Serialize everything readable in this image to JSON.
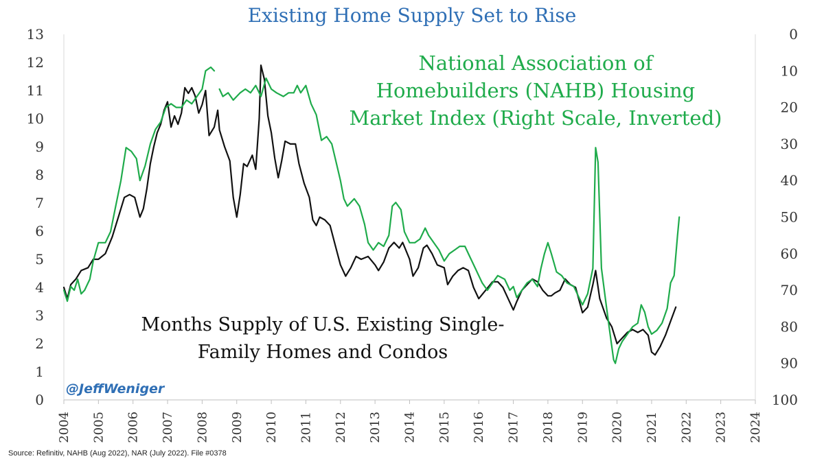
{
  "chart_data": {
    "type": "line",
    "title": "Existing Home Supply Set to Rise",
    "x_range": [
      2004,
      2024
    ],
    "x_ticks": [
      "2004",
      "2005",
      "2006",
      "2007",
      "2008",
      "2009",
      "2010",
      "2011",
      "2012",
      "2013",
      "2014",
      "2015",
      "2016",
      "2017",
      "2018",
      "2019",
      "2020",
      "2021",
      "2022",
      "2023",
      "2024"
    ],
    "left_axis": {
      "range": [
        0,
        13
      ],
      "ticks": [
        "0",
        "1",
        "2",
        "3",
        "4",
        "5",
        "6",
        "7",
        "8",
        "9",
        "10",
        "11",
        "12",
        "13"
      ]
    },
    "right_axis": {
      "range": [
        100,
        0
      ],
      "inverted": true,
      "ticks": [
        "0",
        "10",
        "20",
        "30",
        "40",
        "50",
        "60",
        "70",
        "80",
        "90",
        "100"
      ]
    },
    "grid": false,
    "annotations": {
      "nahb": [
        "National Association of",
        "Homebuilders (NAHB) Housing",
        "Market Index (Right Scale, Inverted)"
      ],
      "supply": [
        "Months Supply of U.S. Existing Single-",
        "Family Homes and Condos"
      ],
      "handle": "@JeffWeniger"
    },
    "source": "Source: Refinitiv, NAHB (Aug 2022), NAR (July 2022). File #0378",
    "series": [
      {
        "color": "#111111",
        "axis": "left",
        "points": [
          [
            2004.0,
            4.0
          ],
          [
            2004.1,
            3.6
          ],
          [
            2004.2,
            4.1
          ],
          [
            2004.35,
            4.3
          ],
          [
            2004.5,
            4.6
          ],
          [
            2004.7,
            4.7
          ],
          [
            2004.85,
            5.0
          ],
          [
            2005.0,
            5.0
          ],
          [
            2005.2,
            5.2
          ],
          [
            2005.4,
            5.8
          ],
          [
            2005.6,
            6.6
          ],
          [
            2005.75,
            7.2
          ],
          [
            2005.9,
            7.3
          ],
          [
            2006.05,
            7.2
          ],
          [
            2006.2,
            6.5
          ],
          [
            2006.3,
            6.8
          ],
          [
            2006.4,
            7.5
          ],
          [
            2006.5,
            8.4
          ],
          [
            2006.6,
            9.0
          ],
          [
            2006.7,
            9.5
          ],
          [
            2006.8,
            9.8
          ],
          [
            2006.9,
            10.3
          ],
          [
            2007.0,
            10.6
          ],
          [
            2007.1,
            9.7
          ],
          [
            2007.2,
            10.1
          ],
          [
            2007.3,
            9.8
          ],
          [
            2007.4,
            10.2
          ],
          [
            2007.5,
            11.1
          ],
          [
            2007.6,
            10.9
          ],
          [
            2007.7,
            11.1
          ],
          [
            2007.8,
            10.8
          ],
          [
            2007.9,
            10.2
          ],
          [
            2008.0,
            10.5
          ],
          [
            2008.1,
            11.0
          ],
          [
            2008.2,
            9.4
          ],
          [
            2008.35,
            9.7
          ],
          [
            2008.45,
            10.3
          ],
          [
            2008.5,
            9.6
          ],
          [
            2008.65,
            9.0
          ],
          [
            2008.8,
            8.5
          ],
          [
            2008.9,
            7.2
          ],
          [
            2009.0,
            6.5
          ],
          [
            2009.1,
            7.3
          ],
          [
            2009.2,
            8.4
          ],
          [
            2009.3,
            8.3
          ],
          [
            2009.45,
            8.7
          ],
          [
            2009.55,
            8.2
          ],
          [
            2009.65,
            10.0
          ],
          [
            2009.7,
            11.9
          ],
          [
            2009.8,
            11.4
          ],
          [
            2009.9,
            10.1
          ],
          [
            2010.0,
            9.5
          ],
          [
            2010.1,
            8.6
          ],
          [
            2010.2,
            7.9
          ],
          [
            2010.3,
            8.5
          ],
          [
            2010.4,
            9.2
          ],
          [
            2010.55,
            9.1
          ],
          [
            2010.7,
            9.1
          ],
          [
            2010.8,
            8.4
          ],
          [
            2010.95,
            7.7
          ],
          [
            2011.1,
            7.2
          ],
          [
            2011.2,
            6.4
          ],
          [
            2011.3,
            6.2
          ],
          [
            2011.4,
            6.5
          ],
          [
            2011.55,
            6.4
          ],
          [
            2011.7,
            6.2
          ],
          [
            2011.85,
            5.5
          ],
          [
            2012.0,
            4.8
          ],
          [
            2012.15,
            4.4
          ],
          [
            2012.3,
            4.7
          ],
          [
            2012.45,
            5.1
          ],
          [
            2012.6,
            5.0
          ],
          [
            2012.8,
            5.1
          ],
          [
            2013.0,
            4.8
          ],
          [
            2013.1,
            4.6
          ],
          [
            2013.25,
            4.9
          ],
          [
            2013.4,
            5.4
          ],
          [
            2013.55,
            5.6
          ],
          [
            2013.7,
            5.4
          ],
          [
            2013.8,
            5.6
          ],
          [
            2014.0,
            5.0
          ],
          [
            2014.1,
            4.4
          ],
          [
            2014.25,
            4.7
          ],
          [
            2014.4,
            5.4
          ],
          [
            2014.5,
            5.5
          ],
          [
            2014.65,
            5.2
          ],
          [
            2014.8,
            4.8
          ],
          [
            2015.0,
            4.7
          ],
          [
            2015.1,
            4.1
          ],
          [
            2015.25,
            4.4
          ],
          [
            2015.4,
            4.6
          ],
          [
            2015.55,
            4.7
          ],
          [
            2015.7,
            4.6
          ],
          [
            2015.85,
            4.0
          ],
          [
            2016.0,
            3.6
          ],
          [
            2016.2,
            3.9
          ],
          [
            2016.4,
            4.2
          ],
          [
            2016.55,
            4.2
          ],
          [
            2016.7,
            4.0
          ],
          [
            2016.85,
            3.6
          ],
          [
            2017.0,
            3.2
          ],
          [
            2017.1,
            3.5
          ],
          [
            2017.25,
            3.9
          ],
          [
            2017.4,
            4.1
          ],
          [
            2017.55,
            4.3
          ],
          [
            2017.7,
            4.2
          ],
          [
            2017.85,
            3.9
          ],
          [
            2018.0,
            3.7
          ],
          [
            2018.1,
            3.7
          ],
          [
            2018.2,
            3.8
          ],
          [
            2018.35,
            3.9
          ],
          [
            2018.5,
            4.3
          ],
          [
            2018.65,
            4.1
          ],
          [
            2018.8,
            4.0
          ],
          [
            2019.0,
            3.1
          ],
          [
            2019.15,
            3.3
          ],
          [
            2019.3,
            4.1
          ],
          [
            2019.38,
            4.6
          ],
          [
            2019.5,
            3.6
          ],
          [
            2019.7,
            2.9
          ],
          [
            2019.85,
            2.6
          ],
          [
            2020.0,
            2.0
          ],
          [
            2020.15,
            2.2
          ],
          [
            2020.3,
            2.4
          ],
          [
            2020.45,
            2.5
          ],
          [
            2020.6,
            2.4
          ],
          [
            2020.75,
            2.5
          ],
          [
            2020.9,
            2.3
          ],
          [
            2021.0,
            1.7
          ],
          [
            2021.1,
            1.6
          ],
          [
            2021.25,
            1.9
          ],
          [
            2021.4,
            2.3
          ],
          [
            2021.55,
            2.8
          ],
          [
            2021.7,
            3.3
          ]
        ]
      },
      {
        "color": "#1fab4b",
        "axis": "right",
        "segments": [
          [
            [
              2004.0,
              70.0
            ],
            [
              2004.1,
              73.0
            ],
            [
              2004.2,
              69.0
            ],
            [
              2004.3,
              70.0
            ],
            [
              2004.4,
              67.0
            ],
            [
              2004.5,
              71.0
            ],
            [
              2004.6,
              70.0
            ],
            [
              2004.75,
              67.0
            ],
            [
              2004.85,
              62.0
            ],
            [
              2005.0,
              57.0
            ],
            [
              2005.2,
              57.0
            ],
            [
              2005.35,
              54.0
            ],
            [
              2005.5,
              47.0
            ],
            [
              2005.65,
              40.0
            ],
            [
              2005.8,
              31.0
            ],
            [
              2005.95,
              32.0
            ],
            [
              2006.1,
              34.0
            ],
            [
              2006.2,
              40.0
            ],
            [
              2006.35,
              36.0
            ],
            [
              2006.5,
              30.0
            ],
            [
              2006.65,
              26.0
            ],
            [
              2006.8,
              24.0
            ],
            [
              2006.95,
              20.0
            ],
            [
              2007.1,
              19.0
            ],
            [
              2007.25,
              20.0
            ],
            [
              2007.4,
              20.0
            ],
            [
              2007.55,
              18.0
            ],
            [
              2007.7,
              19.0
            ],
            [
              2007.85,
              17.0
            ],
            [
              2008.0,
              15.0
            ],
            [
              2008.1,
              10.0
            ],
            [
              2008.25,
              9.0
            ],
            [
              2008.35,
              10.0
            ]
          ],
          [
            [
              2008.5,
              15.0
            ],
            [
              2008.6,
              17.0
            ],
            [
              2008.75,
              16.0
            ],
            [
              2008.9,
              18.0
            ],
            [
              2009.1,
              16.0
            ],
            [
              2009.25,
              15.0
            ],
            [
              2009.4,
              16.0
            ],
            [
              2009.55,
              14.0
            ],
            [
              2009.7,
              17.0
            ],
            [
              2009.85,
              12.0
            ],
            [
              2010.0,
              15.0
            ],
            [
              2010.15,
              16.0
            ],
            [
              2010.35,
              17.0
            ],
            [
              2010.5,
              16.0
            ],
            [
              2010.65,
              16.0
            ],
            [
              2010.75,
              14.0
            ],
            [
              2010.85,
              16.0
            ],
            [
              2011.0,
              14.0
            ],
            [
              2011.15,
              19.0
            ],
            [
              2011.3,
              22.0
            ],
            [
              2011.45,
              29.0
            ],
            [
              2011.6,
              28.0
            ],
            [
              2011.75,
              30.0
            ],
            [
              2011.9,
              36.0
            ],
            [
              2012.0,
              40.0
            ],
            [
              2012.1,
              45.0
            ],
            [
              2012.2,
              47.0
            ],
            [
              2012.4,
              45.0
            ],
            [
              2012.55,
              47.0
            ],
            [
              2012.7,
              52.0
            ],
            [
              2012.8,
              57.0
            ],
            [
              2012.95,
              59.0
            ],
            [
              2013.1,
              57.0
            ],
            [
              2013.25,
              58.0
            ],
            [
              2013.4,
              55.0
            ],
            [
              2013.5,
              47.0
            ],
            [
              2013.6,
              46.0
            ],
            [
              2013.75,
              48.0
            ],
            [
              2013.85,
              54.0
            ],
            [
              2014.0,
              57.0
            ],
            [
              2014.15,
              57.0
            ],
            [
              2014.3,
              56.0
            ],
            [
              2014.45,
              53.0
            ],
            [
              2014.55,
              55.0
            ],
            [
              2014.7,
              57.0
            ],
            [
              2014.85,
              59.0
            ],
            [
              2015.0,
              62.0
            ],
            [
              2015.15,
              60.0
            ],
            [
              2015.3,
              59.0
            ],
            [
              2015.45,
              58.0
            ],
            [
              2015.6,
              58.0
            ],
            [
              2015.75,
              61.0
            ],
            [
              2015.9,
              64.0
            ],
            [
              2016.0,
              66.0
            ],
            [
              2016.1,
              68.0
            ],
            [
              2016.25,
              70.0
            ],
            [
              2016.4,
              68.0
            ],
            [
              2016.55,
              66.0
            ],
            [
              2016.75,
              67.0
            ],
            [
              2016.9,
              70.0
            ],
            [
              2017.0,
              69.0
            ],
            [
              2017.1,
              72.0
            ],
            [
              2017.25,
              70.0
            ],
            [
              2017.4,
              68.0
            ],
            [
              2017.55,
              67.0
            ],
            [
              2017.7,
              69.0
            ],
            [
              2017.8,
              64.0
            ],
            [
              2017.9,
              60.0
            ],
            [
              2018.0,
              57.0
            ],
            [
              2018.1,
              60.0
            ],
            [
              2018.25,
              65.0
            ],
            [
              2018.4,
              66.0
            ],
            [
              2018.55,
              68.0
            ],
            [
              2018.75,
              69.0
            ],
            [
              2018.9,
              72.0
            ],
            [
              2019.0,
              74.0
            ],
            [
              2019.15,
              71.0
            ],
            [
              2019.3,
              64.0
            ],
            [
              2019.38,
              31.0
            ],
            [
              2019.45,
              35.0
            ],
            [
              2019.55,
              64.0
            ],
            [
              2019.7,
              75.0
            ],
            [
              2019.8,
              82.0
            ],
            [
              2019.9,
              89.0
            ],
            [
              2019.95,
              90.0
            ],
            [
              2020.05,
              86.0
            ],
            [
              2020.15,
              84.0
            ],
            [
              2020.3,
              82.0
            ],
            [
              2020.45,
              80.0
            ],
            [
              2020.6,
              79.0
            ],
            [
              2020.7,
              74.0
            ],
            [
              2020.8,
              76.0
            ],
            [
              2020.9,
              80.0
            ],
            [
              2021.0,
              82.0
            ],
            [
              2021.15,
              81.0
            ],
            [
              2021.3,
              79.0
            ],
            [
              2021.45,
              75.0
            ],
            [
              2021.55,
              68.0
            ],
            [
              2021.65,
              66.0
            ],
            [
              2021.75,
              55.0
            ],
            [
              2021.8,
              50.0
            ]
          ]
        ]
      }
    ]
  }
}
